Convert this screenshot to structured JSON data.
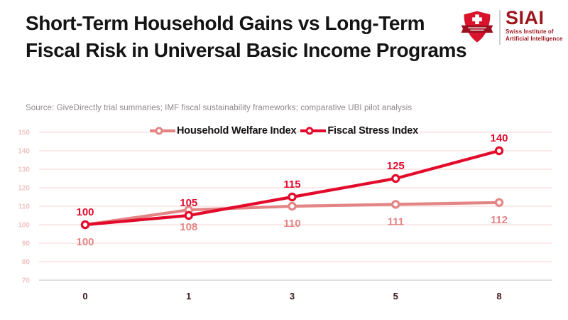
{
  "header": {
    "title": "Short-Term Household Gains vs Long-Term Fiscal Risk in Universal Basic Income Programs",
    "source": "Source: GiveDirectly trial summaries; IMF fiscal sustainability frameworks; comparative UBI pilot analysis"
  },
  "logo": {
    "acronym": "SIAI",
    "subtitle_line1": "Swiss Institute of",
    "subtitle_line2": "Artificial Intelligence",
    "shield_icon": "swiss-shield-cross-banner-icon"
  },
  "colors": {
    "fiscal_red": "#e30b2c",
    "welfare_pink": "#e38585",
    "grid_pink": "#f9dcdc",
    "y_tick_pink": "#f1c3c3",
    "x_tick_maroon": "#40161a",
    "axis_gray": "#c9c9c9",
    "logo_dark_red": "#9d161d",
    "shield_red": "#d8132b",
    "banner_dark_red": "#9e0f1f"
  },
  "chart_data": {
    "type": "line",
    "categories": [
      "0",
      "1",
      "3",
      "5",
      "8"
    ],
    "series": [
      {
        "name": "Household Welfare Index",
        "values": [
          100,
          108,
          110,
          111,
          112
        ],
        "color": "#e38585",
        "marker": "circle-open",
        "data_label_position": "below"
      },
      {
        "name": "Fiscal Stress Index",
        "values": [
          100,
          105,
          115,
          125,
          140
        ],
        "color": "#e30b2c",
        "marker": "circle-open",
        "data_label_position": "above"
      }
    ],
    "ylim": [
      70,
      150
    ],
    "yticks": [
      150,
      140,
      130,
      120,
      110,
      100,
      90,
      80,
      70
    ],
    "grid": true,
    "data_labels": true,
    "legend_position": "top-center",
    "title": "",
    "xlabel": "",
    "ylabel": ""
  }
}
